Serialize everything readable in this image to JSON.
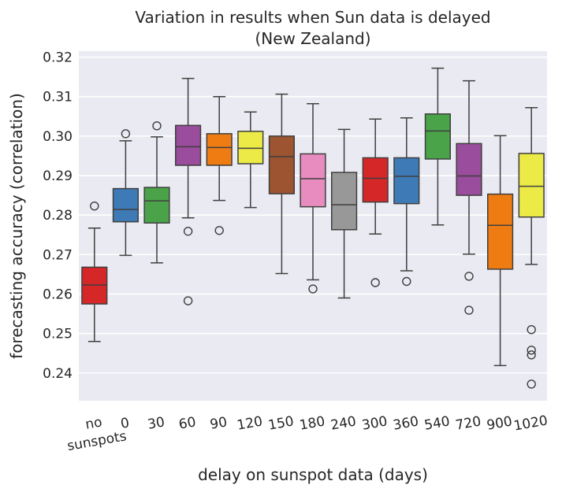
{
  "chart_data": {
    "type": "box",
    "title": "Variation in results when Sun data is delayed",
    "subtitle": "(New Zealand)",
    "xlabel": "delay on sunspot data (days)",
    "ylabel": "forecasting accuracy (correlation)",
    "ylim": [
      0.233,
      0.3215
    ],
    "yticks": [
      0.24,
      0.25,
      0.26,
      0.27,
      0.28,
      0.29,
      0.3,
      0.31,
      0.32
    ],
    "ytick_labels": [
      "0.24",
      "0.25",
      "0.26",
      "0.27",
      "0.28",
      "0.29",
      "0.30",
      "0.31",
      "0.32"
    ],
    "grid": true,
    "background": "#eaeaf2",
    "categories": [
      {
        "label": [
          "no",
          "sunspots"
        ],
        "color": "#d62728",
        "whisker_low": 0.248,
        "q1": 0.2575,
        "median": 0.2623,
        "q3": 0.2668,
        "whisker_high": 0.2767,
        "outliers": [
          0.2823
        ]
      },
      {
        "label": [
          "0"
        ],
        "color": "#3e7ab5",
        "whisker_low": 0.2698,
        "q1": 0.2783,
        "median": 0.2814,
        "q3": 0.2867,
        "whisker_high": 0.2988,
        "outliers": [
          0.3006
        ]
      },
      {
        "label": [
          "30"
        ],
        "color": "#4aa349",
        "whisker_low": 0.2679,
        "q1": 0.278,
        "median": 0.2836,
        "q3": 0.287,
        "whisker_high": 0.2998,
        "outliers": [
          0.3026
        ]
      },
      {
        "label": [
          "60"
        ],
        "color": "#9a4c9d",
        "whisker_low": 0.2793,
        "q1": 0.2926,
        "median": 0.2973,
        "q3": 0.3027,
        "whisker_high": 0.3146,
        "outliers": [
          0.2759,
          0.2583
        ]
      },
      {
        "label": [
          "90"
        ],
        "color": "#ee7c13",
        "whisker_low": 0.2837,
        "q1": 0.2926,
        "median": 0.2971,
        "q3": 0.3006,
        "whisker_high": 0.31,
        "outliers": [
          0.2761
        ]
      },
      {
        "label": [
          "120"
        ],
        "color": "#ecea46",
        "whisker_low": 0.2819,
        "q1": 0.293,
        "median": 0.2969,
        "q3": 0.3012,
        "whisker_high": 0.3061,
        "outliers": []
      },
      {
        "label": [
          "150"
        ],
        "color": "#9c5431",
        "whisker_low": 0.2652,
        "q1": 0.2854,
        "median": 0.2948,
        "q3": 0.3,
        "whisker_high": 0.3106,
        "outliers": []
      },
      {
        "label": [
          "180"
        ],
        "color": "#e88cbf",
        "whisker_low": 0.2636,
        "q1": 0.2821,
        "median": 0.2892,
        "q3": 0.2955,
        "whisker_high": 0.3082,
        "outliers": [
          0.2613
        ]
      },
      {
        "label": [
          "240"
        ],
        "color": "#989898",
        "whisker_low": 0.259,
        "q1": 0.2763,
        "median": 0.2826,
        "q3": 0.2908,
        "whisker_high": 0.3017,
        "outliers": []
      },
      {
        "label": [
          "300"
        ],
        "color": "#d62728",
        "whisker_low": 0.2752,
        "q1": 0.2833,
        "median": 0.2893,
        "q3": 0.2945,
        "whisker_high": 0.3043,
        "outliers": [
          0.2629
        ]
      },
      {
        "label": [
          "360"
        ],
        "color": "#3e7ab5",
        "whisker_low": 0.2659,
        "q1": 0.2829,
        "median": 0.2898,
        "q3": 0.2945,
        "whisker_high": 0.3046,
        "outliers": [
          0.2632
        ]
      },
      {
        "label": [
          "540"
        ],
        "color": "#4aa349",
        "whisker_low": 0.2775,
        "q1": 0.2942,
        "median": 0.3013,
        "q3": 0.3056,
        "whisker_high": 0.3172,
        "outliers": []
      },
      {
        "label": [
          "720"
        ],
        "color": "#9a4c9d",
        "whisker_low": 0.2701,
        "q1": 0.285,
        "median": 0.2899,
        "q3": 0.2981,
        "whisker_high": 0.314,
        "outliers": [
          0.2645,
          0.2559
        ]
      },
      {
        "label": [
          "900"
        ],
        "color": "#ee7c13",
        "whisker_low": 0.2419,
        "q1": 0.2663,
        "median": 0.2774,
        "q3": 0.2853,
        "whisker_high": 0.3001,
        "outliers": []
      },
      {
        "label": [
          "1020"
        ],
        "color": "#ecea46",
        "whisker_low": 0.2675,
        "q1": 0.2795,
        "median": 0.2873,
        "q3": 0.2956,
        "whisker_high": 0.3072,
        "outliers": [
          0.251,
          0.2458,
          0.2446,
          0.2372
        ]
      }
    ]
  }
}
